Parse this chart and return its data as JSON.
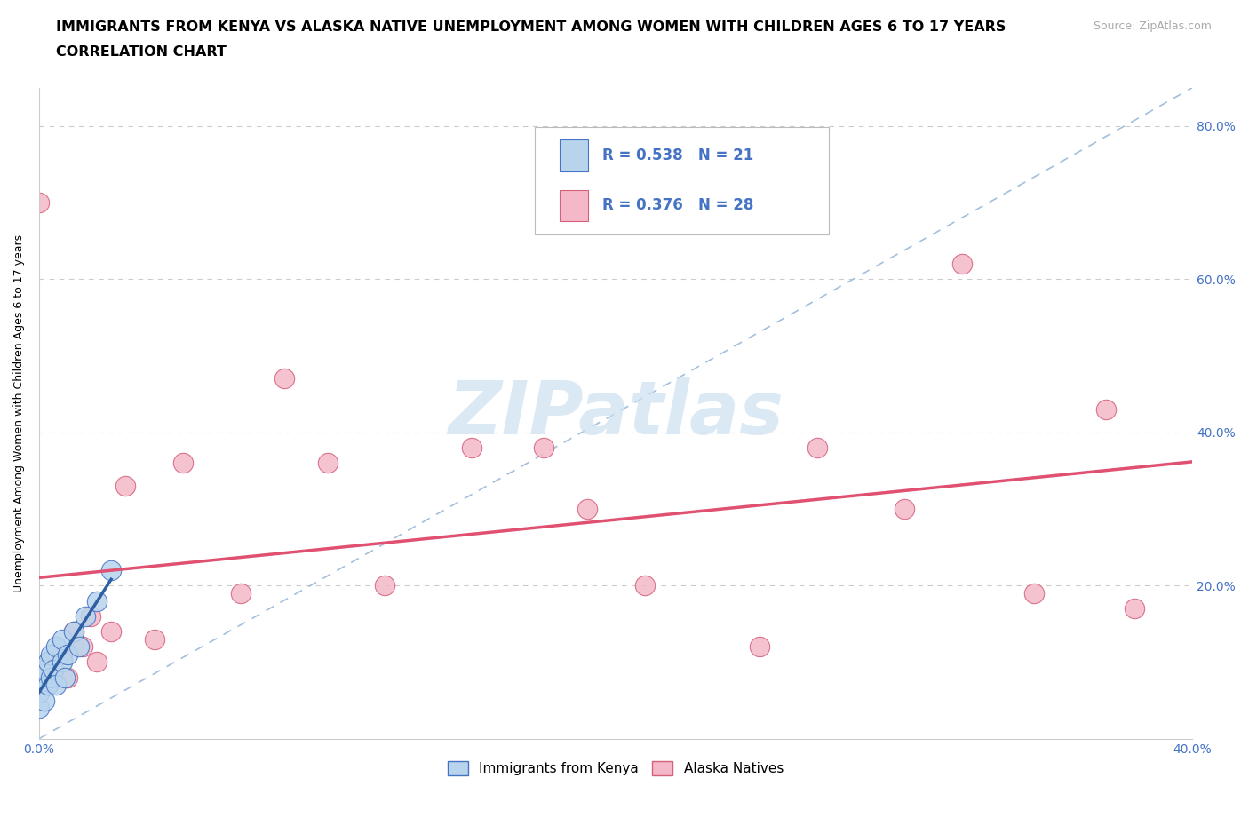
{
  "title_line1": "IMMIGRANTS FROM KENYA VS ALASKA NATIVE UNEMPLOYMENT AMONG WOMEN WITH CHILDREN AGES 6 TO 17 YEARS",
  "title_line2": "CORRELATION CHART",
  "source_text": "Source: ZipAtlas.com",
  "ylabel": "Unemployment Among Women with Children Ages 6 to 17 years",
  "x_min": 0.0,
  "x_max": 0.4,
  "y_min": 0.0,
  "y_max": 0.85,
  "x_ticks": [
    0.0,
    0.05,
    0.1,
    0.15,
    0.2,
    0.25,
    0.3,
    0.35,
    0.4
  ],
  "x_tick_labels": [
    "0.0%",
    "",
    "",
    "",
    "",
    "",
    "",
    "",
    "40.0%"
  ],
  "y_ticks": [
    0.0,
    0.2,
    0.4,
    0.6,
    0.8
  ],
  "y_tick_labels_right": [
    "",
    "20.0%",
    "40.0%",
    "60.0%",
    "80.0%"
  ],
  "kenya_x": [
    0.0,
    0.0,
    0.0,
    0.002,
    0.002,
    0.003,
    0.003,
    0.004,
    0.004,
    0.005,
    0.006,
    0.006,
    0.008,
    0.008,
    0.009,
    0.01,
    0.012,
    0.014,
    0.016,
    0.02,
    0.025
  ],
  "kenya_y": [
    0.04,
    0.06,
    0.08,
    0.05,
    0.09,
    0.07,
    0.1,
    0.08,
    0.11,
    0.09,
    0.07,
    0.12,
    0.1,
    0.13,
    0.08,
    0.11,
    0.14,
    0.12,
    0.16,
    0.18,
    0.22
  ],
  "alaska_x": [
    0.0,
    0.003,
    0.005,
    0.008,
    0.01,
    0.012,
    0.015,
    0.018,
    0.02,
    0.025,
    0.03,
    0.04,
    0.05,
    0.07,
    0.085,
    0.1,
    0.12,
    0.15,
    0.175,
    0.19,
    0.21,
    0.25,
    0.27,
    0.3,
    0.32,
    0.345,
    0.37,
    0.38
  ],
  "alaska_y": [
    0.7,
    0.1,
    0.08,
    0.11,
    0.08,
    0.14,
    0.12,
    0.16,
    0.1,
    0.14,
    0.33,
    0.13,
    0.36,
    0.19,
    0.47,
    0.36,
    0.2,
    0.38,
    0.38,
    0.3,
    0.2,
    0.12,
    0.38,
    0.3,
    0.62,
    0.19,
    0.43,
    0.17
  ],
  "kenya_R": 0.538,
  "kenya_N": 21,
  "alaska_R": 0.376,
  "alaska_N": 28,
  "kenya_color": "#b8d4ed",
  "kenya_edge_color": "#4472c4",
  "alaska_color": "#f4b8c8",
  "alaska_edge_color": "#d4607a",
  "kenya_line_color": "#2e5fa3",
  "alaska_line_color": "#e05070",
  "ref_line_color": "#9ab8d8",
  "watermark_color": "#cde0f0",
  "legend_text_color": "#4472c4",
  "title_fontsize": 11.5,
  "subtitle_fontsize": 11.5,
  "source_fontsize": 9,
  "axis_label_fontsize": 9,
  "tick_fontsize": 10,
  "legend_fontsize": 12
}
